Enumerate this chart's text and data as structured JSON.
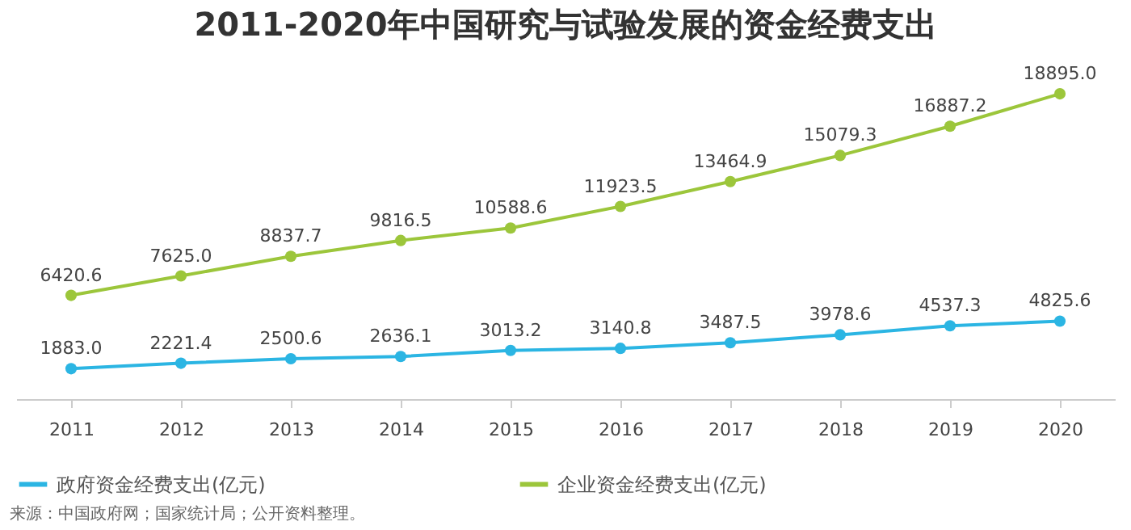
{
  "chart_data": {
    "type": "line",
    "title": "2011-2020年中国研究与试验发展的资金经费支出",
    "categories": [
      "2011",
      "2012",
      "2013",
      "2014",
      "2015",
      "2016",
      "2017",
      "2018",
      "2019",
      "2020"
    ],
    "series": [
      {
        "name": "政府资金经费支出(亿元)",
        "color": "#2bb5e3",
        "values": [
          1883.0,
          2221.4,
          2500.6,
          2636.1,
          3013.2,
          3140.8,
          3487.5,
          3978.6,
          4537.3,
          4825.6
        ],
        "value_labels": [
          "1883.0",
          "2221.4",
          "2500.6",
          "2636.1",
          "3013.2",
          "3140.8",
          "3487.5",
          "3978.6",
          "4537.3",
          "4825.6"
        ]
      },
      {
        "name": "企业资金经费支出(亿元)",
        "color": "#9cc63b",
        "values": [
          6420.6,
          7625.0,
          8837.7,
          9816.5,
          10588.6,
          11923.5,
          13464.9,
          15079.3,
          16887.2,
          18895.0
        ],
        "value_labels": [
          "6420.6",
          "7625.0",
          "8837.7",
          "9816.5",
          "10588.6",
          "11923.5",
          "13464.9",
          "15079.3",
          "16887.2",
          "18895.0"
        ]
      }
    ],
    "marker": "circle",
    "legend": "bottom",
    "grid": false,
    "annotations": [
      "来源：中国政府网；国家统计局；公开资料整理。"
    ]
  }
}
